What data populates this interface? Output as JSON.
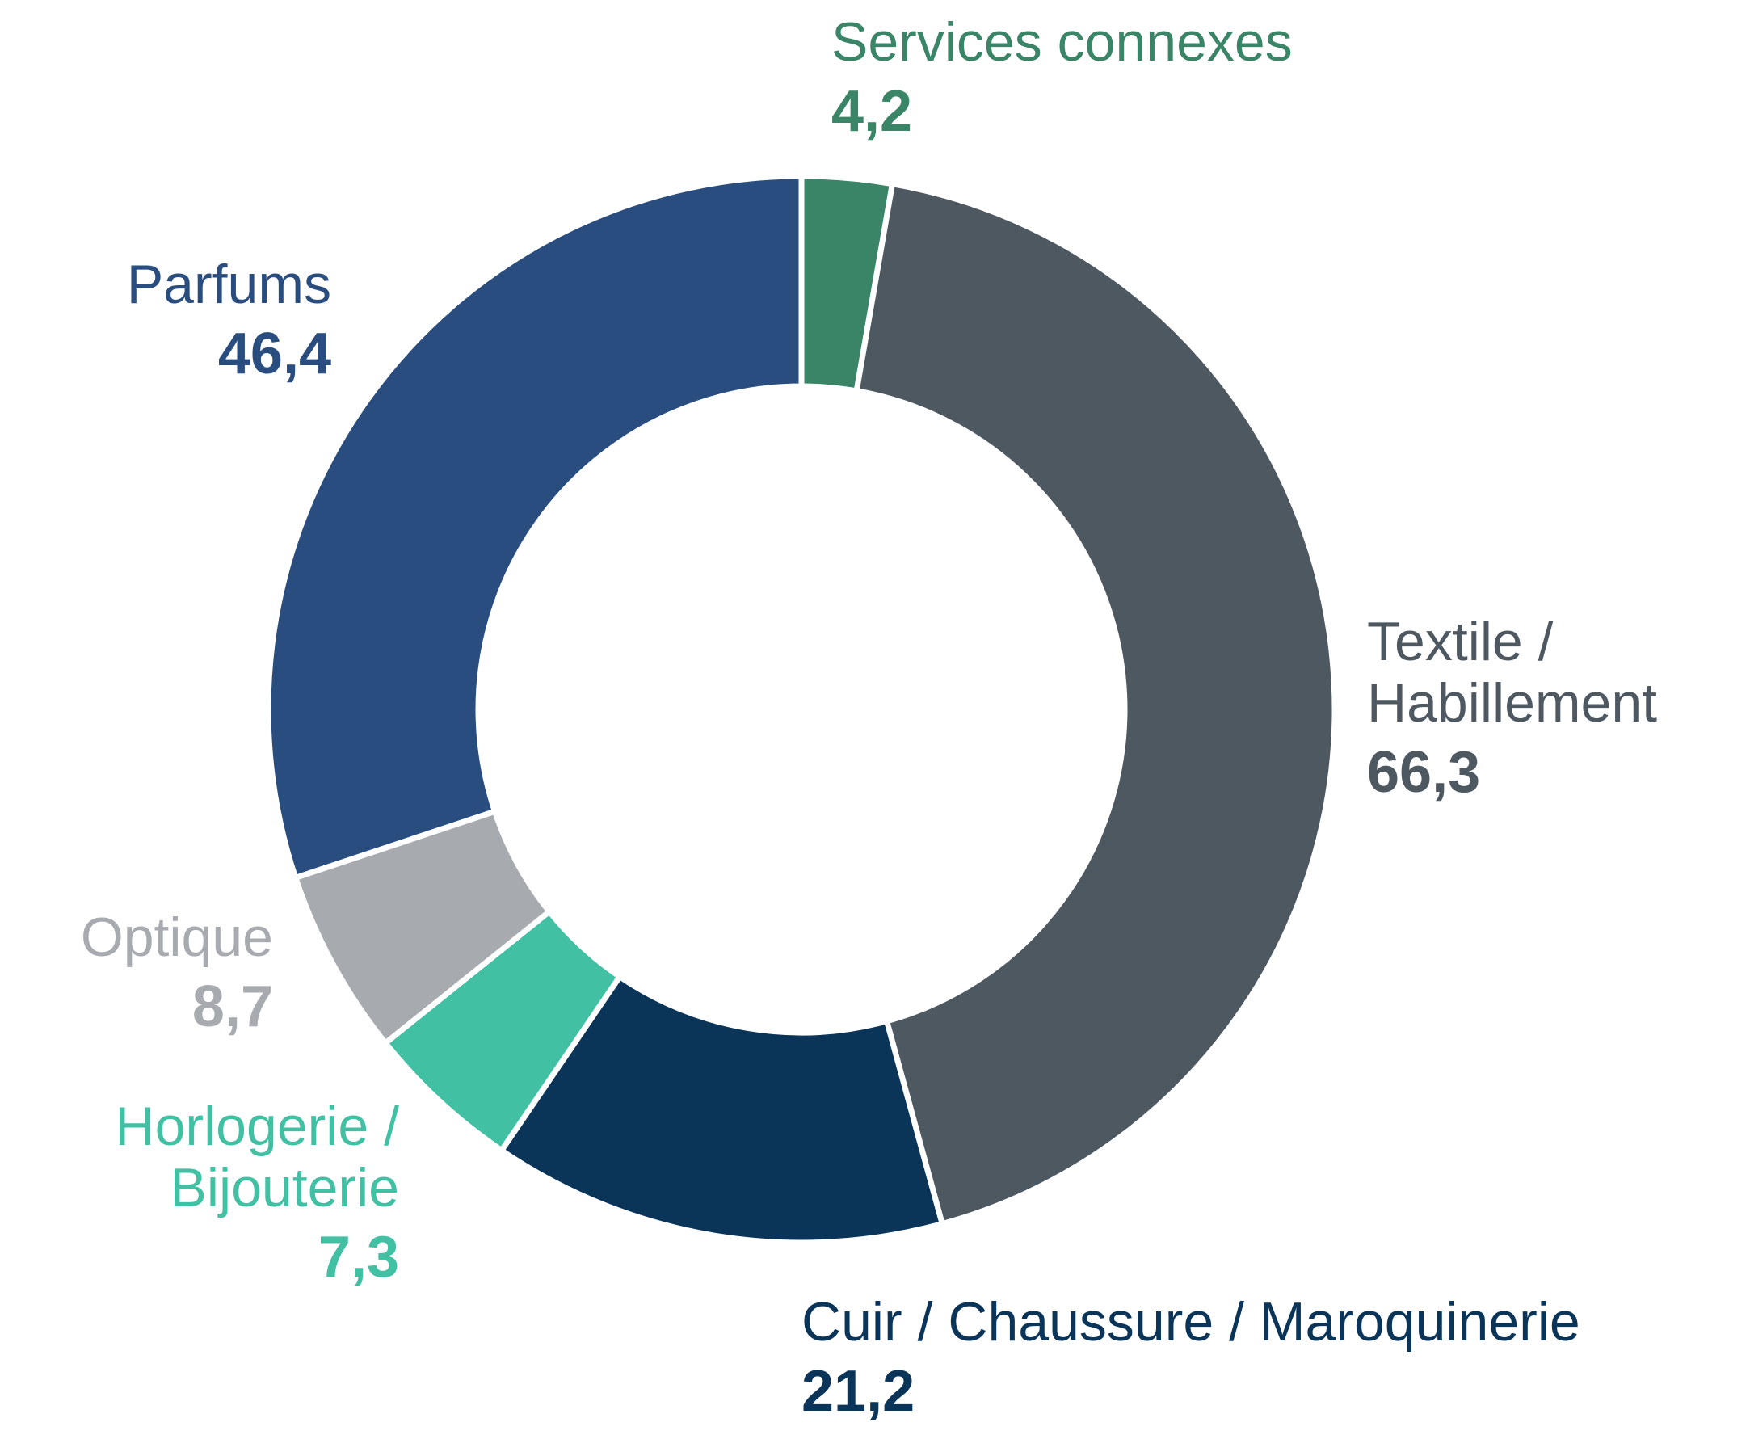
{
  "chart_data": {
    "type": "donut",
    "categories": [
      "Services connexes",
      "Textile / Habillement",
      "Cuir / Chaussure / Maroquinerie",
      "Horlogerie / Bijouterie",
      "Optique",
      "Parfums"
    ],
    "values": [
      4.2,
      66.3,
      21.2,
      7.3,
      8.7,
      46.4
    ],
    "value_labels": [
      "4,2",
      "66,3",
      "21,2",
      "7,3",
      "8,7",
      "46,4"
    ],
    "colors": [
      "#3a8467",
      "#4e5861",
      "#0b3459",
      "#42c0a3",
      "#a7abaf",
      "#294d7e"
    ]
  }
}
